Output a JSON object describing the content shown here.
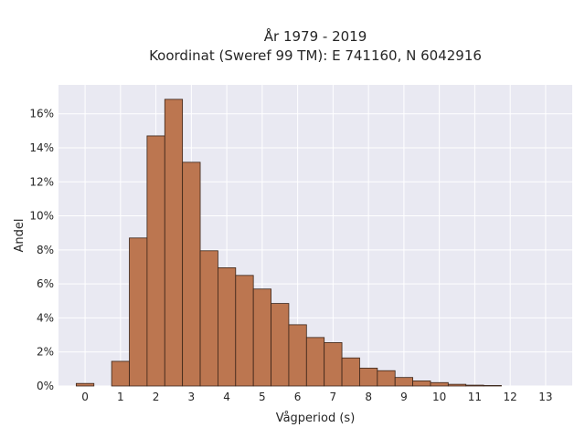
{
  "chart_data": {
    "type": "bar",
    "title_lines": [
      "År 1979 - 2019",
      "Koordinat (Sweref 99 TM): E 741160, N 6042916"
    ],
    "xlabel": "Vågperiod (s)",
    "ylabel": "Andel",
    "xlim": [
      -0.75,
      13.75
    ],
    "ylim": [
      0,
      17.7
    ],
    "xticks": [
      0,
      1,
      2,
      3,
      4,
      5,
      6,
      7,
      8,
      9,
      10,
      11,
      12,
      13
    ],
    "yticks": [
      {
        "value": 0,
        "label": "0%"
      },
      {
        "value": 2,
        "label": "2%"
      },
      {
        "value": 4,
        "label": "4%"
      },
      {
        "value": 6,
        "label": "6%"
      },
      {
        "value": 8,
        "label": "8%"
      },
      {
        "value": 10,
        "label": "10%"
      },
      {
        "value": 12,
        "label": "12%"
      },
      {
        "value": 14,
        "label": "14%"
      },
      {
        "value": 16,
        "label": "16%"
      }
    ],
    "bin_width": 0.5,
    "bin_starts": [
      -0.25,
      0.25,
      0.75,
      1.25,
      1.75,
      2.25,
      2.75,
      3.25,
      3.75,
      4.25,
      4.75,
      5.25,
      5.75,
      6.25,
      6.75,
      7.25,
      7.75,
      8.25,
      8.75,
      9.25,
      9.75,
      10.25,
      10.75,
      11.25,
      11.75,
      12.25,
      12.75
    ],
    "values": [
      0.15,
      0.0,
      1.45,
      8.7,
      14.7,
      16.85,
      13.15,
      7.95,
      6.95,
      6.5,
      5.7,
      4.85,
      3.6,
      2.85,
      2.55,
      1.65,
      1.05,
      0.9,
      0.5,
      0.3,
      0.2,
      0.1,
      0.05,
      0.03,
      0.0,
      0.0,
      0.0
    ],
    "grid": true,
    "colors": {
      "bar_fill": "#bc7650",
      "bar_edge": "#3a2418",
      "plot_background": "#e9e9f2",
      "grid": "#ffffff"
    }
  }
}
